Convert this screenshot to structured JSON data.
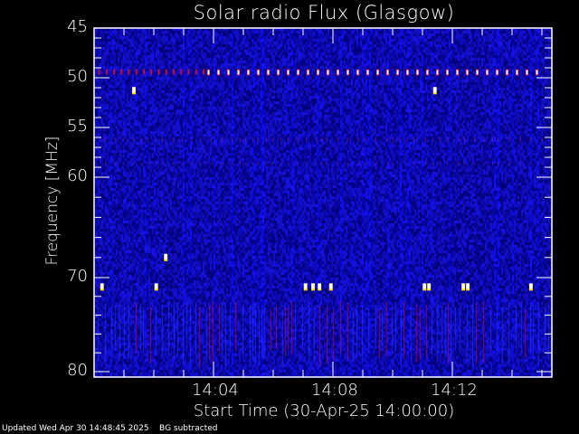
{
  "chart_data": {
    "type": "heatmap",
    "title": "Solar radio Flux (Glasgow)",
    "xlabel": "Start Time (30-Apr-25 14:00:00)",
    "ylabel": "Frequency [MHz]",
    "x_tick_labels": [
      "14:04",
      "14:08",
      "14:12"
    ],
    "y_tick_labels": [
      "45",
      "50",
      "55",
      "60",
      "70",
      "80"
    ],
    "y_ticks": [
      45,
      50,
      55,
      60,
      70,
      80
    ],
    "xlim": [
      "14:00:00",
      "14:15:20"
    ],
    "ylim": [
      45,
      80
    ],
    "y_inverted": true,
    "background_color": "#0c0c8c",
    "colormap": [
      "#00007a",
      "#1a1ad0",
      "#3030ff",
      "#c01030",
      "#ff3000",
      "#ffe000",
      "#ffffff"
    ],
    "features": {
      "periodic_line": {
        "freq_mhz": 49.5,
        "start": "14:03:50",
        "end": "14:15:00",
        "interval_s": 20,
        "color": "#ffffff"
      },
      "faint_periodic_line": {
        "freq_mhz": 49.5,
        "start": "14:00:10",
        "end": "14:03:40",
        "interval_s": 15,
        "color": "#c01030"
      },
      "events": [
        {
          "time": "14:01:20",
          "freq_mhz": 51.3
        },
        {
          "time": "14:11:25",
          "freq_mhz": 51.3
        },
        {
          "time": "14:02:24",
          "freq_mhz": 68.0
        },
        {
          "time": "14:00:16",
          "freq_mhz": 71.0
        },
        {
          "time": "14:02:05",
          "freq_mhz": 71.0
        },
        {
          "time": "14:07:05",
          "freq_mhz": 71.0
        },
        {
          "time": "14:07:20",
          "freq_mhz": 71.0
        },
        {
          "time": "14:07:33",
          "freq_mhz": 71.0
        },
        {
          "time": "14:07:56",
          "freq_mhz": 71.0
        },
        {
          "time": "14:11:04",
          "freq_mhz": 71.0
        },
        {
          "time": "14:11:13",
          "freq_mhz": 71.0
        },
        {
          "time": "14:12:22",
          "freq_mhz": 71.0
        },
        {
          "time": "14:12:31",
          "freq_mhz": 71.0
        },
        {
          "time": "14:14:38",
          "freq_mhz": 71.0
        }
      ],
      "streak_band_mhz": [
        72.5,
        79.5
      ]
    }
  },
  "footer": {
    "updated": "Updated Wed Apr 30 14:48:45 2025",
    "note": "BG subtracted"
  }
}
